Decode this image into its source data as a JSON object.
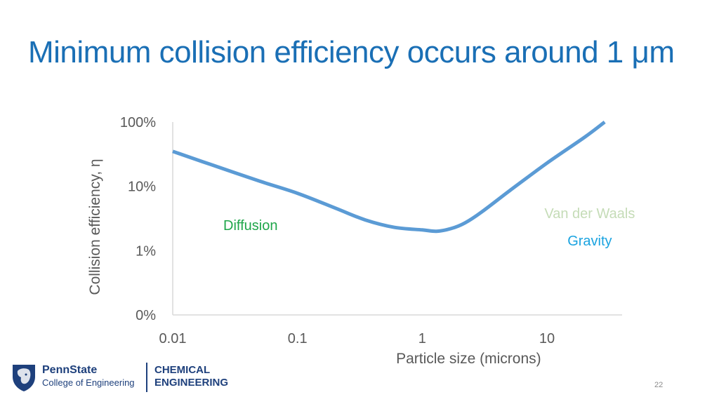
{
  "slide": {
    "title": "Minimum collision efficiency occurs around 1 μm",
    "page_number": "22",
    "footer": {
      "logo_name": "PennState",
      "logo_college": "College of Engineering",
      "department_line1": "CHEMICAL",
      "department_line2": "ENGINEERING"
    }
  },
  "colors": {
    "title": "#1a6fb5",
    "curve": "#5b9bd5",
    "diffusion": "#1fa64a",
    "van_der_waals": "#c5dcb7",
    "gravity": "#1aa3e0",
    "brand": "#1e407c"
  },
  "chart_data": {
    "type": "line",
    "title": "",
    "xlabel": "Particle size (microns)",
    "ylabel": "Collision efficiency, η",
    "x_scale": "log",
    "y_scale": "log",
    "xlim": [
      0.01,
      40
    ],
    "ylim": [
      0.001,
      1
    ],
    "x_ticks": [
      {
        "value": 0.01,
        "label": "0.01"
      },
      {
        "value": 0.1,
        "label": "0.1"
      },
      {
        "value": 1,
        "label": "1"
      },
      {
        "value": 10,
        "label": "10"
      }
    ],
    "y_ticks": [
      {
        "value": 0.001,
        "label": "0%"
      },
      {
        "value": 0.01,
        "label": "1%"
      },
      {
        "value": 0.1,
        "label": "10%"
      },
      {
        "value": 1,
        "label": "100%"
      }
    ],
    "grid": false,
    "legend": "none",
    "series": [
      {
        "name": "Collision efficiency",
        "x": [
          0.01,
          0.02,
          0.05,
          0.1,
          0.2,
          0.35,
          0.6,
          1.0,
          1.3,
          1.7,
          2.2,
          3.0,
          5.0,
          10,
          20,
          29
        ],
        "y": [
          0.35,
          0.22,
          0.12,
          0.078,
          0.046,
          0.03,
          0.023,
          0.021,
          0.02,
          0.022,
          0.027,
          0.04,
          0.085,
          0.23,
          0.58,
          1.0
        ]
      }
    ],
    "annotations": [
      {
        "text": "Diffusion",
        "x": 0.042,
        "y": 0.021,
        "color_key": "diffusion"
      },
      {
        "text": "Van der Waals",
        "x": 22,
        "y": 0.032,
        "color_key": "van_der_waals"
      },
      {
        "text": "Gravity",
        "x": 22,
        "y": 0.012,
        "color_key": "gravity"
      }
    ]
  }
}
